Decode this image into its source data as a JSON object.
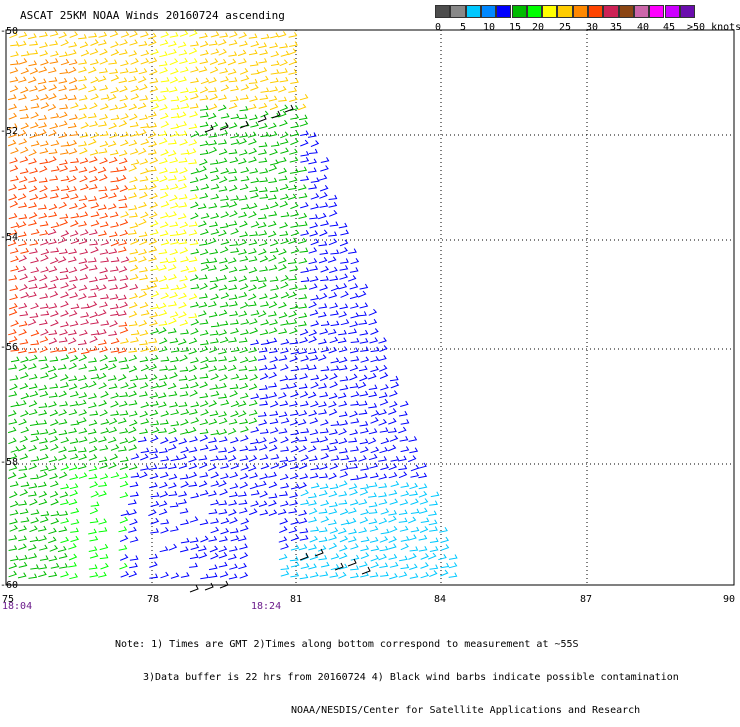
{
  "title": "ASCAT 25KM NOAA Winds 20160724 ascending",
  "legend": {
    "colors": [
      "#4d4d4d",
      "#888888",
      "#00c8ff",
      "#0088ff",
      "#0000ff",
      "#00bb00",
      "#00ff00",
      "#ffff00",
      "#ffcc00",
      "#ff8800",
      "#ff4400",
      "#cc2255",
      "#8b4513",
      "#cc66aa",
      "#ff00ff",
      "#cc00ff",
      "#6a0dad"
    ],
    "labels": [
      "0",
      "5",
      "10",
      "15",
      "20",
      "25",
      "30",
      "35",
      "40",
      "45",
      ">50 knots"
    ]
  },
  "axes": {
    "latitudes": [
      "-50",
      "-52",
      "-54",
      "-56",
      "-58",
      "-60"
    ],
    "longitudes": [
      "75",
      "78",
      "81",
      "84",
      "87",
      "90"
    ],
    "times": [
      "18:04",
      "18:24"
    ]
  },
  "notes": {
    "line1": "Note: 1) Times are GMT 2)Times along bottom correspond to measurement at ~55S",
    "line2": "3)Data buffer is 22 hrs from 20160724 4) Black wind barbs indicate possible contamination",
    "line3": "NOAA/NESDIS/Center for Satellite Applications and Research"
  }
}
